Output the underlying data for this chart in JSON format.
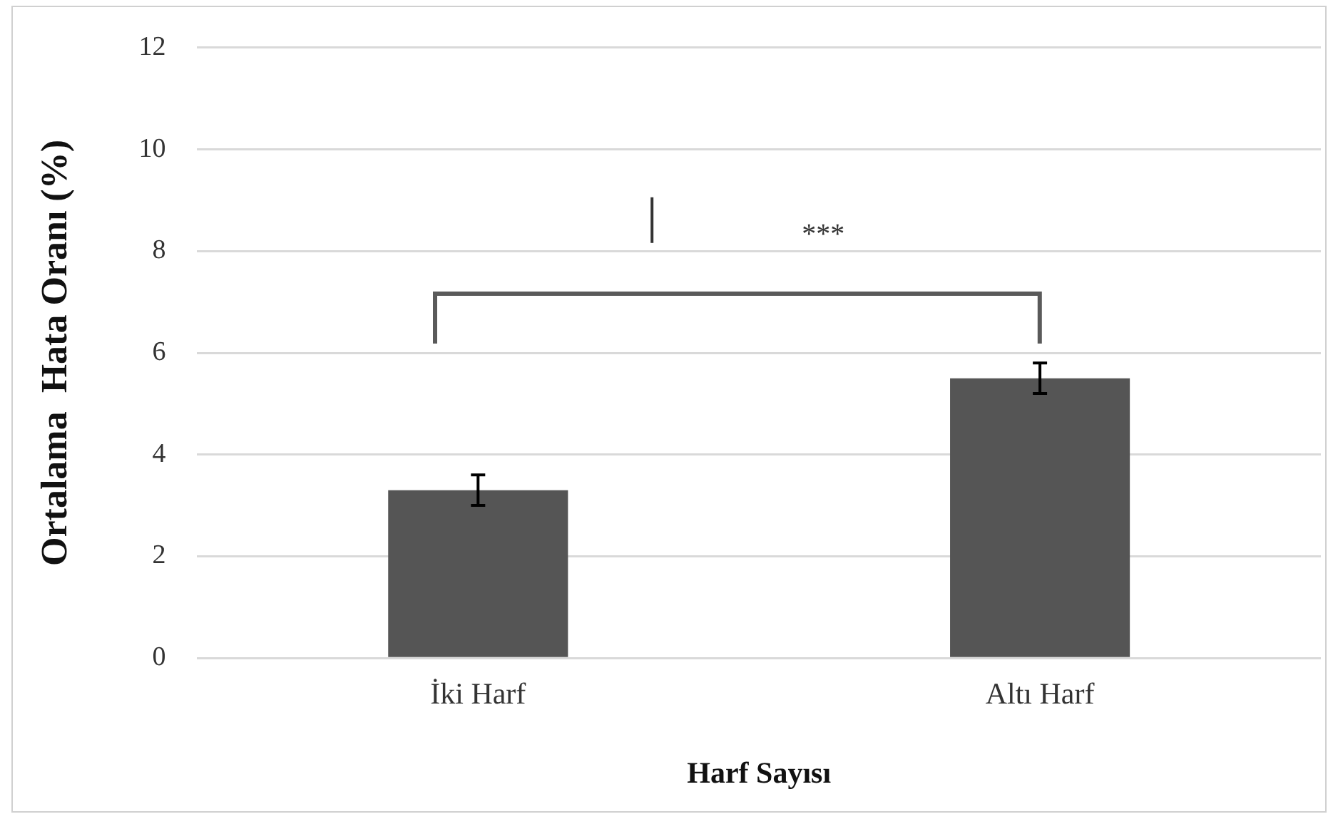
{
  "chart_data": {
    "type": "bar",
    "xlabel": "Harf Sayısı",
    "ylabel": "Ortalama  Hata Oranı (%)",
    "categories": [
      "İki Harf",
      "Altı Harf"
    ],
    "values": [
      3.3,
      5.5
    ],
    "errors": [
      0.3,
      0.3
    ],
    "color": "#555555",
    "ylim": [
      0,
      12
    ],
    "yticks": [
      0,
      2,
      4,
      6,
      8,
      10,
      12
    ],
    "grid": "y",
    "legend": false,
    "annotations": [
      "***"
    ]
  }
}
